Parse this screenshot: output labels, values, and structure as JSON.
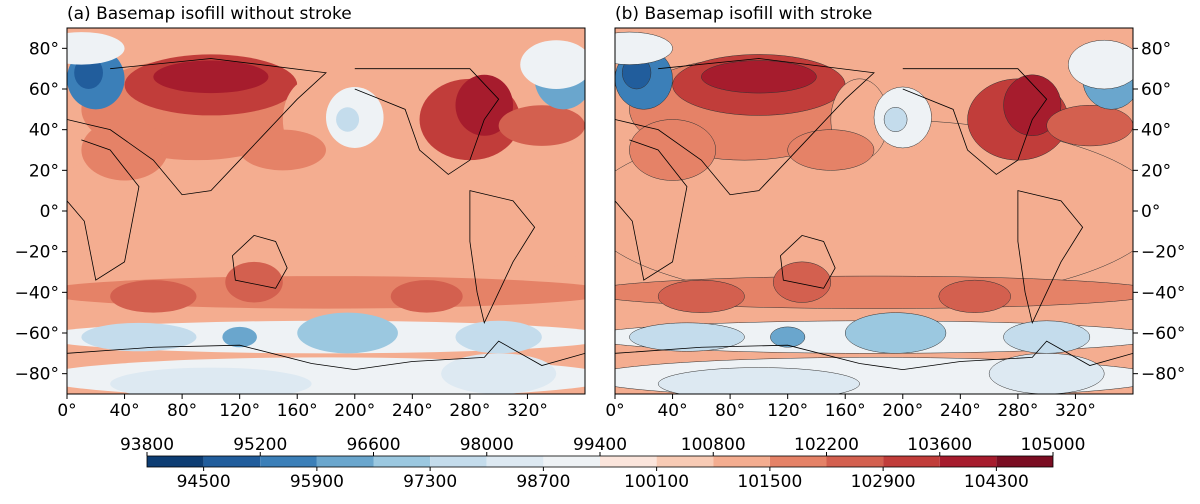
{
  "chart_data": [
    {
      "type": "contour-map",
      "title": "(a) Basemap isofill without stroke",
      "stroke": false,
      "ylabels_side": "left",
      "xlim": [
        0,
        360
      ],
      "ylim": [
        -90,
        90
      ],
      "xticks": [
        {
          "value": 0,
          "label": "0°"
        },
        {
          "value": 40,
          "label": "40°"
        },
        {
          "value": 80,
          "label": "80°"
        },
        {
          "value": 120,
          "label": "120°"
        },
        {
          "value": 160,
          "label": "160°"
        },
        {
          "value": 200,
          "label": "200°"
        },
        {
          "value": 240,
          "label": "240°"
        },
        {
          "value": 280,
          "label": "280°"
        },
        {
          "value": 320,
          "label": "320°"
        }
      ],
      "yticks": [
        {
          "value": -80,
          "label": "−80°"
        },
        {
          "value": -60,
          "label": "−60°"
        },
        {
          "value": -40,
          "label": "−40°"
        },
        {
          "value": -20,
          "label": "−20°"
        },
        {
          "value": 0,
          "label": "0°"
        },
        {
          "value": 20,
          "label": "20°"
        },
        {
          "value": 40,
          "label": "40°"
        },
        {
          "value": 60,
          "label": "60°"
        },
        {
          "value": 80,
          "label": "80°"
        }
      ]
    },
    {
      "type": "contour-map",
      "title": "(b) Basemap isofill with stroke",
      "stroke": true,
      "ylabels_side": "right",
      "xlim": [
        0,
        360
      ],
      "ylim": [
        -90,
        90
      ],
      "xticks": [
        {
          "value": 0,
          "label": "0°"
        },
        {
          "value": 40,
          "label": "40°"
        },
        {
          "value": 80,
          "label": "80°"
        },
        {
          "value": 120,
          "label": "120°"
        },
        {
          "value": 160,
          "label": "160°"
        },
        {
          "value": 200,
          "label": "200°"
        },
        {
          "value": 240,
          "label": "240°"
        },
        {
          "value": 280,
          "label": "280°"
        },
        {
          "value": 320,
          "label": "320°"
        }
      ],
      "yticks": [
        {
          "value": -80,
          "label": "−80°"
        },
        {
          "value": -60,
          "label": "−60°"
        },
        {
          "value": -40,
          "label": "−40°"
        },
        {
          "value": -20,
          "label": "−20°"
        },
        {
          "value": 0,
          "label": "0°"
        },
        {
          "value": 20,
          "label": "20°"
        },
        {
          "value": 40,
          "label": "40°"
        },
        {
          "value": 60,
          "label": "60°"
        },
        {
          "value": 80,
          "label": "80°"
        }
      ]
    },
    {
      "type": "colorbar",
      "levels": [
        93800,
        94500,
        95200,
        95900,
        96600,
        97300,
        98000,
        98700,
        99400,
        100100,
        100800,
        101500,
        102200,
        102900,
        103600,
        104300,
        105000
      ],
      "colors": [
        "#0d3d73",
        "#215d9c",
        "#3b7fb8",
        "#6aa6cd",
        "#9bc8e0",
        "#c4dcec",
        "#dde9f2",
        "#eef2f5",
        "#fbe5dc",
        "#f8cbb5",
        "#f4ad90",
        "#e58267",
        "#d3604f",
        "#c13d3a",
        "#a61c2d",
        "#7a0d22"
      ]
    }
  ]
}
